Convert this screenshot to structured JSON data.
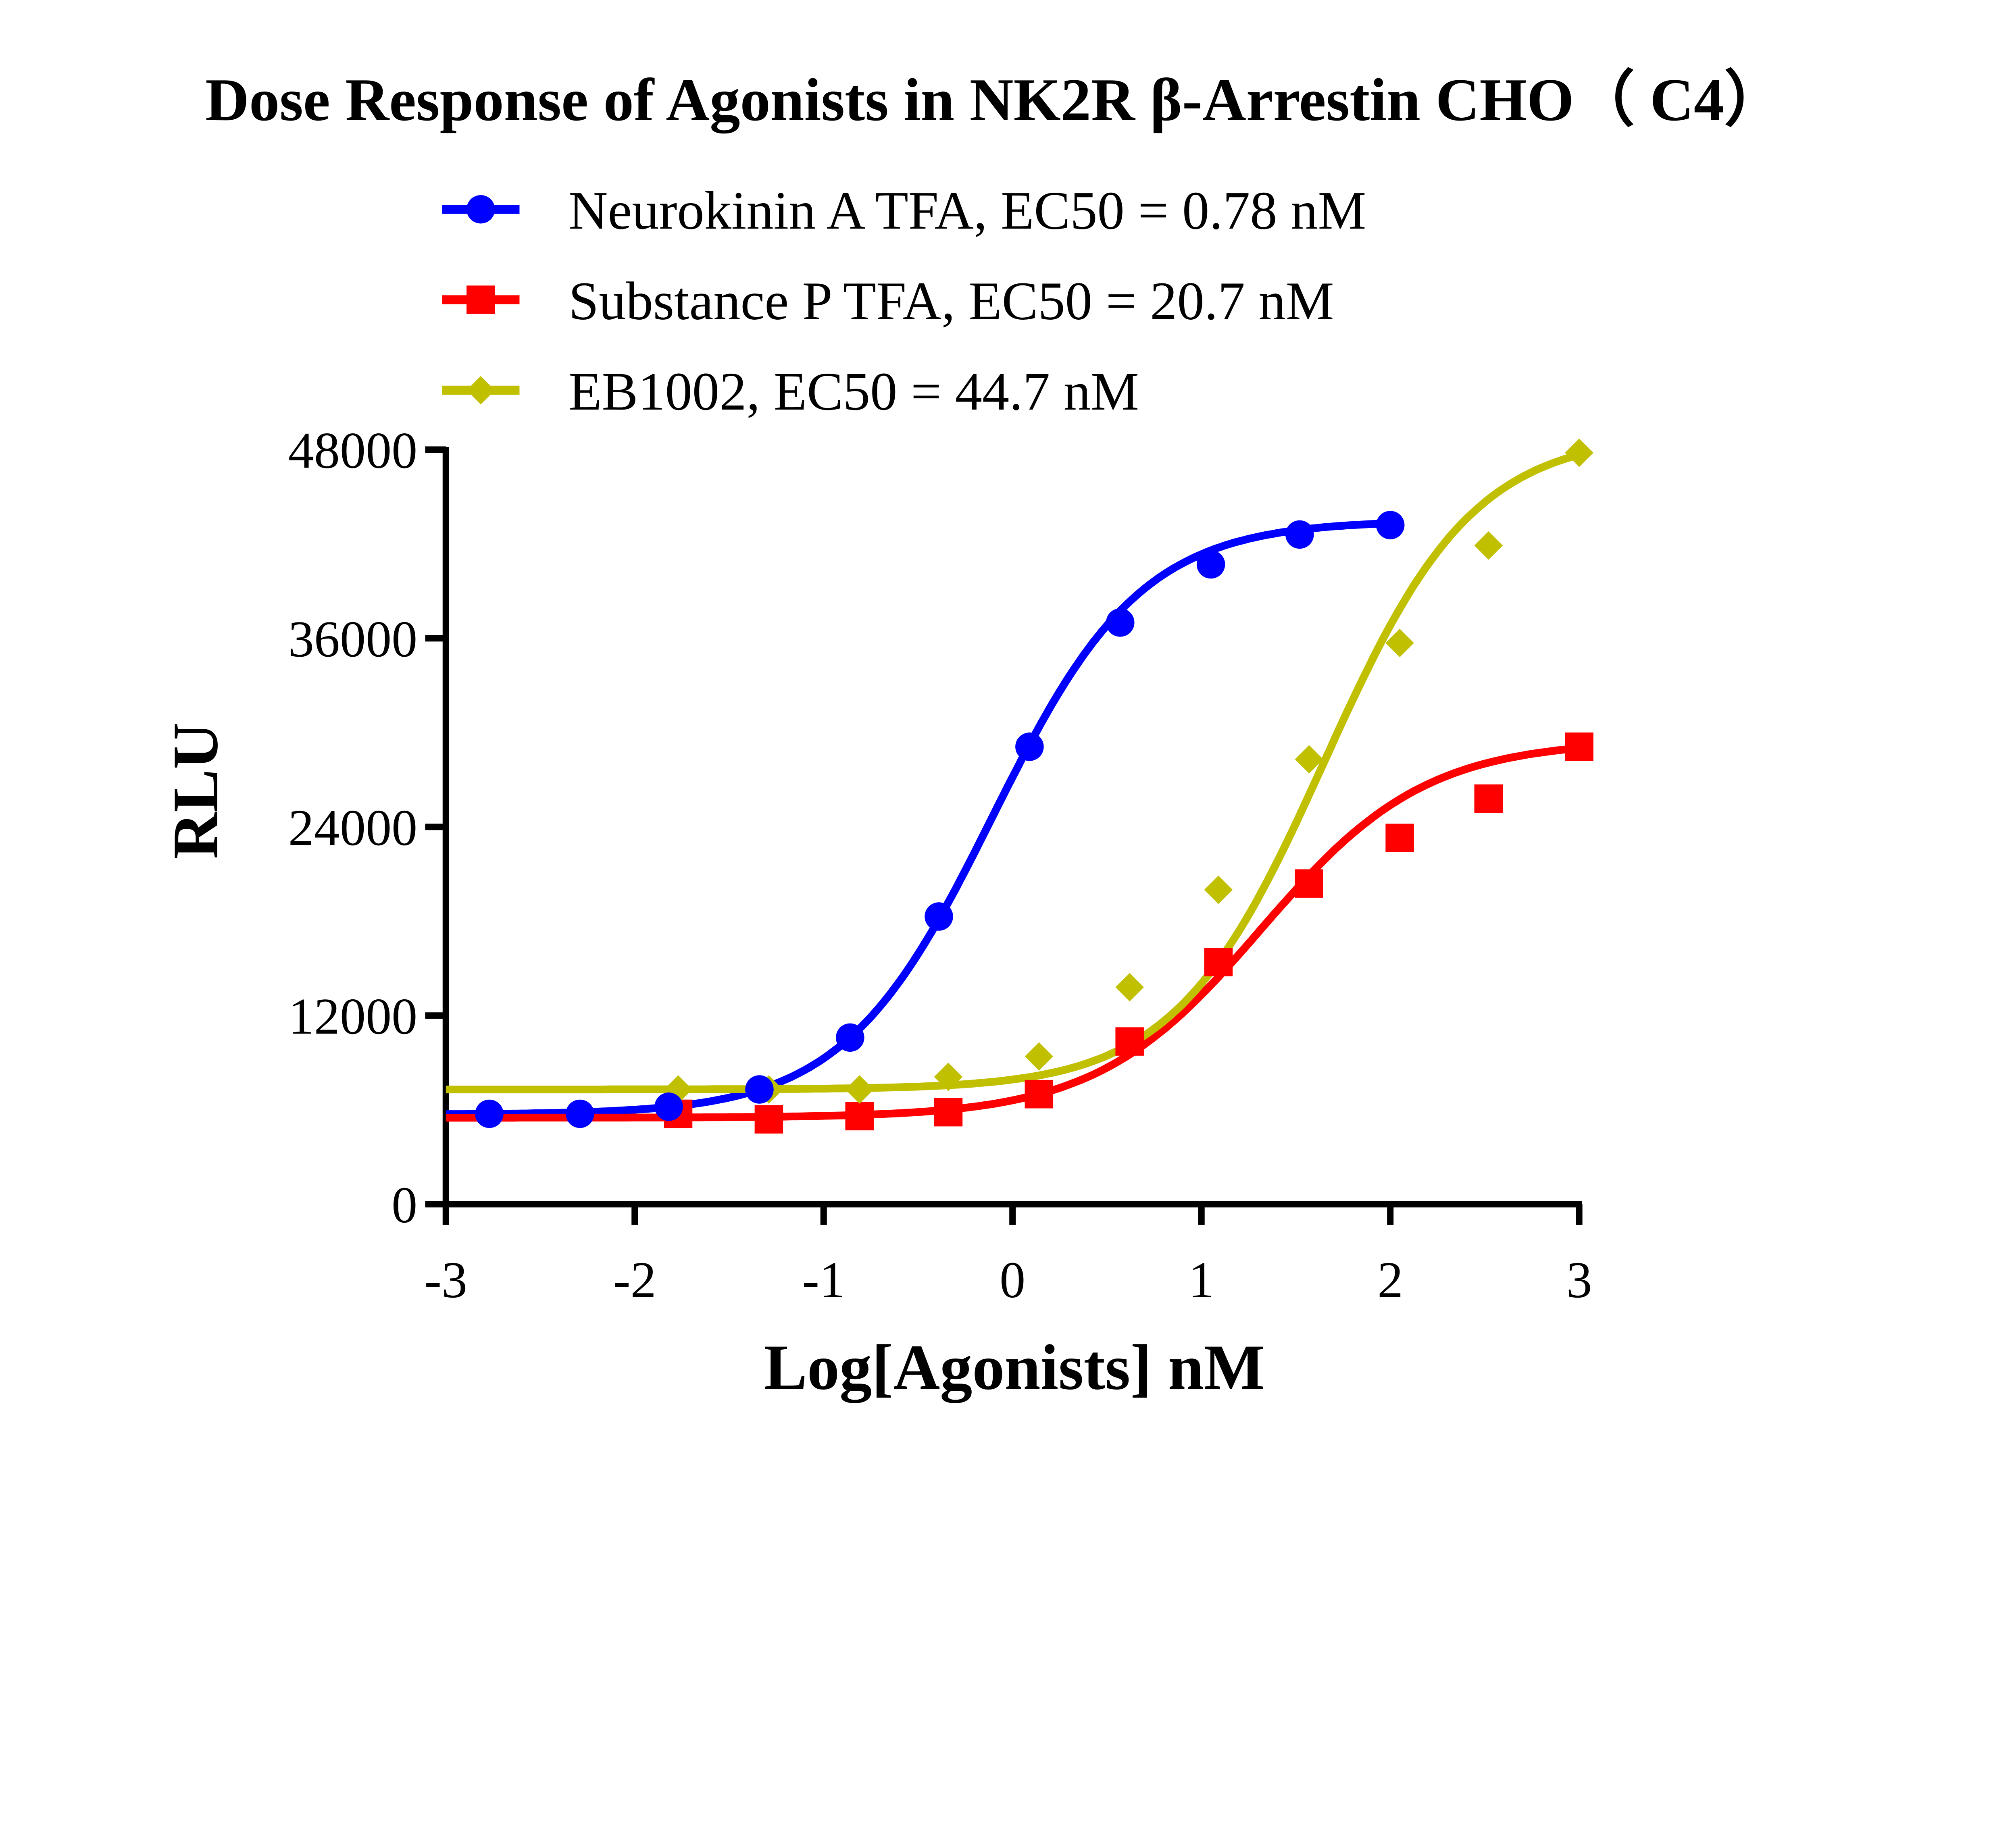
{
  "chart_data": {
    "type": "line",
    "title": "Dose Response of Agonists in NK2R β-Arrestin CHO（ C4）",
    "xlabel": "Log[Agonists] nM",
    "ylabel": "RLU",
    "xlim": [
      -3,
      3
    ],
    "ylim": [
      0,
      48000
    ],
    "xticks": [
      -3,
      -2,
      -1,
      0,
      1,
      2,
      3
    ],
    "xtick_labels": [
      "-3",
      "-2",
      "-1",
      "0",
      "1",
      "2",
      "3"
    ],
    "yticks": [
      0,
      12000,
      24000,
      36000,
      48000
    ],
    "ytick_labels": [
      "0",
      "12000",
      "24000",
      "36000",
      "48000"
    ],
    "grid": false,
    "legend_position": "top",
    "series": [
      {
        "name": "Neurokinin A TFA, EC50 = 0.78 nM",
        "color": "#0000FF",
        "marker": "circle",
        "ec50_nM": 0.78,
        "x": [
          -2.77,
          -2.29,
          -1.82,
          -1.34,
          -0.86,
          -0.39,
          0.09,
          0.57,
          1.05,
          1.52,
          2.0
        ],
        "y": [
          5750,
          5750,
          6200,
          7300,
          10600,
          18300,
          29100,
          37000,
          40700,
          42600,
          43200
        ]
      },
      {
        "name": "Substance P TFA, EC50 = 20.7 nM",
        "color": "#FF0000",
        "marker": "square",
        "ec50_nM": 20.7,
        "x": [
          -1.77,
          -1.29,
          -0.81,
          -0.34,
          0.14,
          0.62,
          1.09,
          1.57,
          2.05,
          2.52,
          3.0
        ],
        "y": [
          5750,
          5400,
          5600,
          5850,
          7000,
          10350,
          15400,
          20400,
          23300,
          25800,
          29100
        ]
      },
      {
        "name": "EB1002, EC50 = 44.7 nM",
        "color": "#C0C000",
        "marker": "diamond",
        "ec50_nM": 44.7,
        "x": [
          -1.77,
          -1.29,
          -0.81,
          -0.34,
          0.14,
          0.62,
          1.09,
          1.57,
          2.05,
          2.52,
          3.0
        ],
        "y": [
          7300,
          7300,
          7300,
          8100,
          9400,
          13800,
          20000,
          28300,
          35700,
          41900,
          47800
        ]
      }
    ]
  }
}
